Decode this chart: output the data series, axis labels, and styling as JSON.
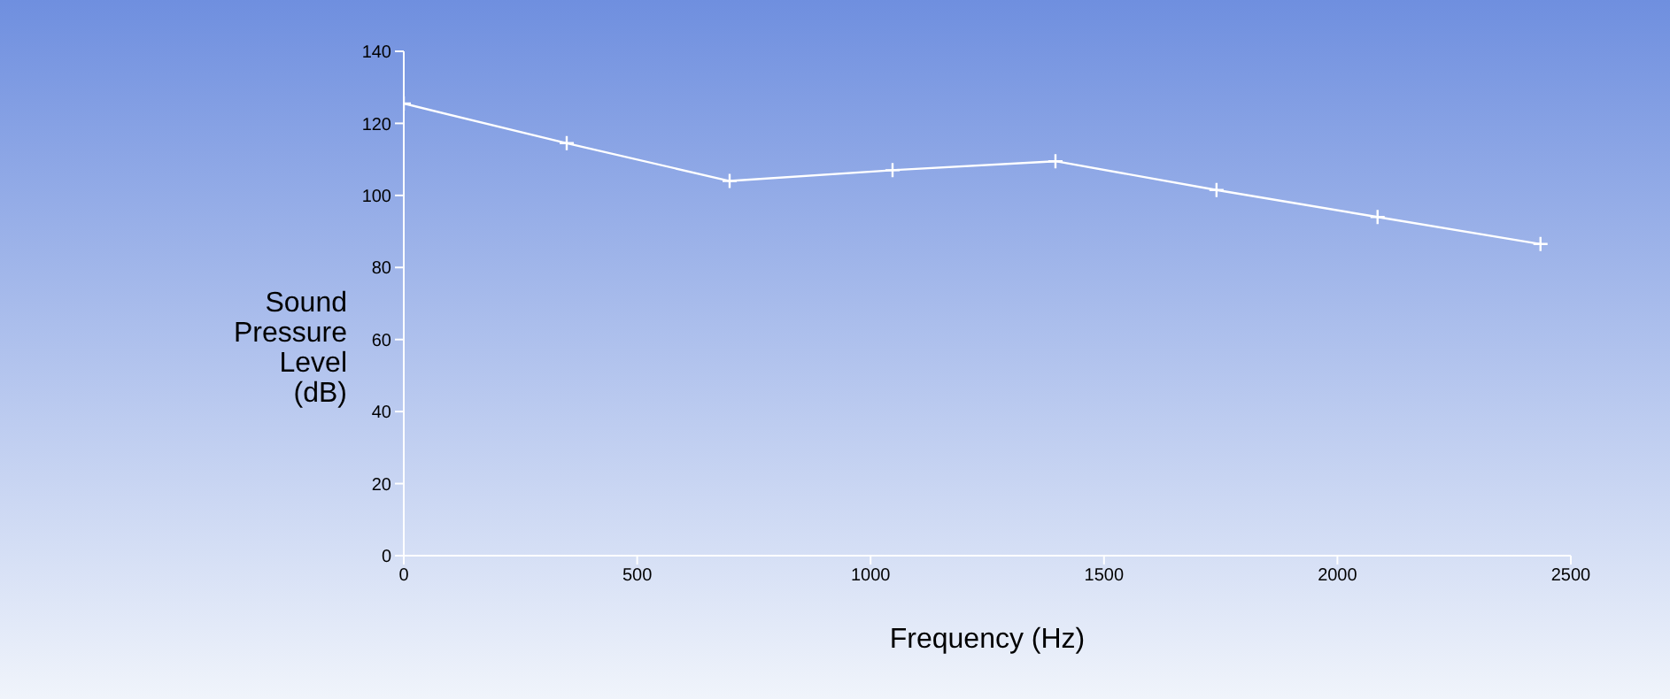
{
  "chart_data": {
    "type": "line",
    "xlabel": "Frequency (Hz)",
    "ylabel": "Sound Pressure Level (dB)",
    "x": [
      0,
      349,
      698,
      1047,
      1396,
      1741,
      2086,
      2435
    ],
    "series": [
      {
        "color": "#ffffff",
        "values": [
          125.5,
          114.5,
          104,
          107,
          109.5,
          101.5,
          94,
          86.5
        ]
      }
    ],
    "xlim": [
      0,
      2500
    ],
    "xticks": [
      0,
      500,
      1000,
      1500,
      2000,
      2500
    ],
    "ylim": [
      0,
      140
    ],
    "yticks": [
      0,
      20,
      40,
      60,
      80,
      100,
      120,
      140
    ],
    "grid": false,
    "legend": false,
    "marker": "cross",
    "line_style": "solid"
  }
}
